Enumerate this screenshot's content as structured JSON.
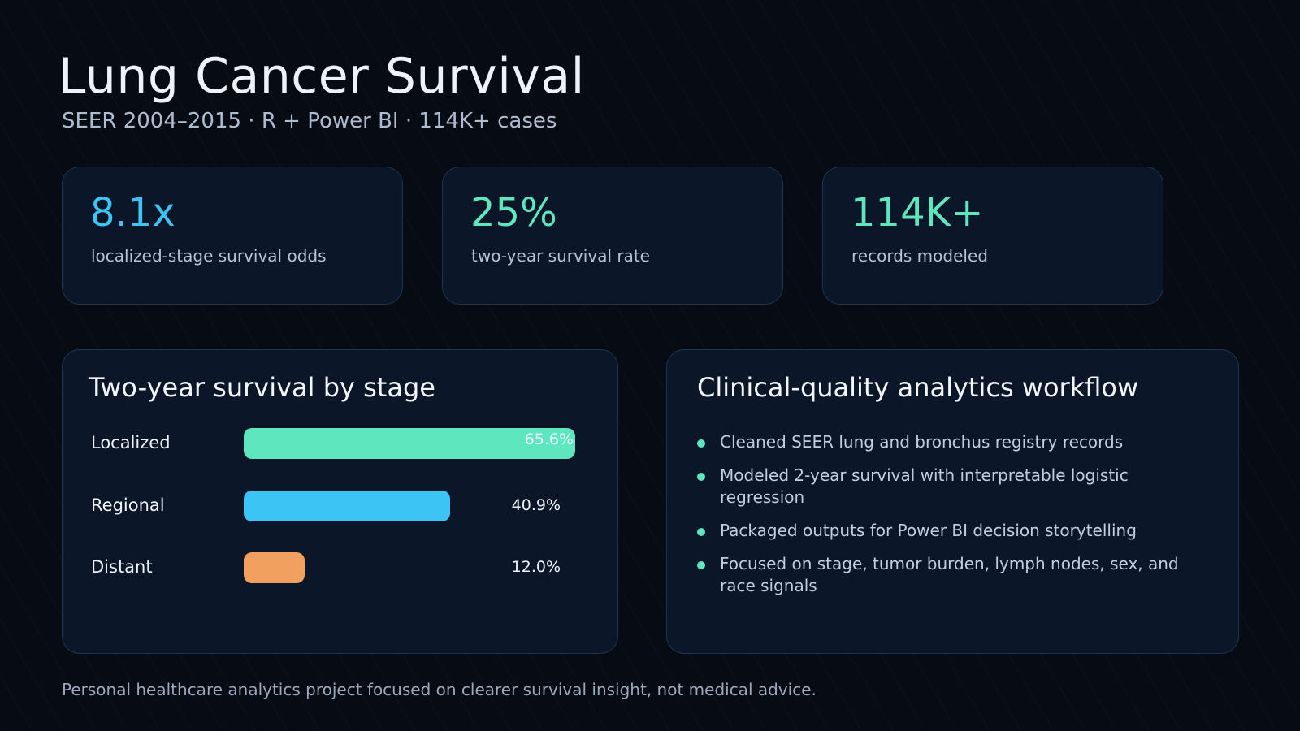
{
  "header": {
    "title": "Lung Cancer Survival",
    "subtitle": "SEER 2004–2015 · R + Power BI · 114K+ cases"
  },
  "stats": [
    {
      "value": "8.1x",
      "label": "localized-stage survival odds",
      "color": "#3cc4f5"
    },
    {
      "value": "25%",
      "label": "two-year survival rate",
      "color": "#5ee6bf"
    },
    {
      "value": "114K+",
      "label": "records modeled",
      "color": "#5ee6bf"
    }
  ],
  "chart": {
    "title": "Two-year survival by stage",
    "chart_data": {
      "type": "bar",
      "orientation": "horizontal",
      "title": "Two-year survival by stage",
      "categories": [
        "Localized",
        "Regional",
        "Distant"
      ],
      "values": [
        65.6,
        40.9,
        12.0
      ],
      "value_labels": [
        "65.6%",
        "40.9%",
        "12.0%"
      ],
      "colors": [
        "#5ee6bf",
        "#3cc4f5",
        "#f2a060"
      ],
      "xlim": [
        0,
        65.6
      ],
      "grid": false
    }
  },
  "workflow": {
    "title": "Clinical-quality analytics workflow",
    "items": [
      "Cleaned SEER lung and bronchus registry records",
      "Modeled 2-year survival with interpretable logistic regression",
      "Packaged outputs for Power BI decision storytelling",
      "Focused on stage, tumor burden, lymph nodes, sex, and race signals"
    ],
    "bullet_color": "#5ee6bf"
  },
  "footer": {
    "text": "Personal healthcare analytics project focused on clearer survival insight, not medical advice."
  }
}
